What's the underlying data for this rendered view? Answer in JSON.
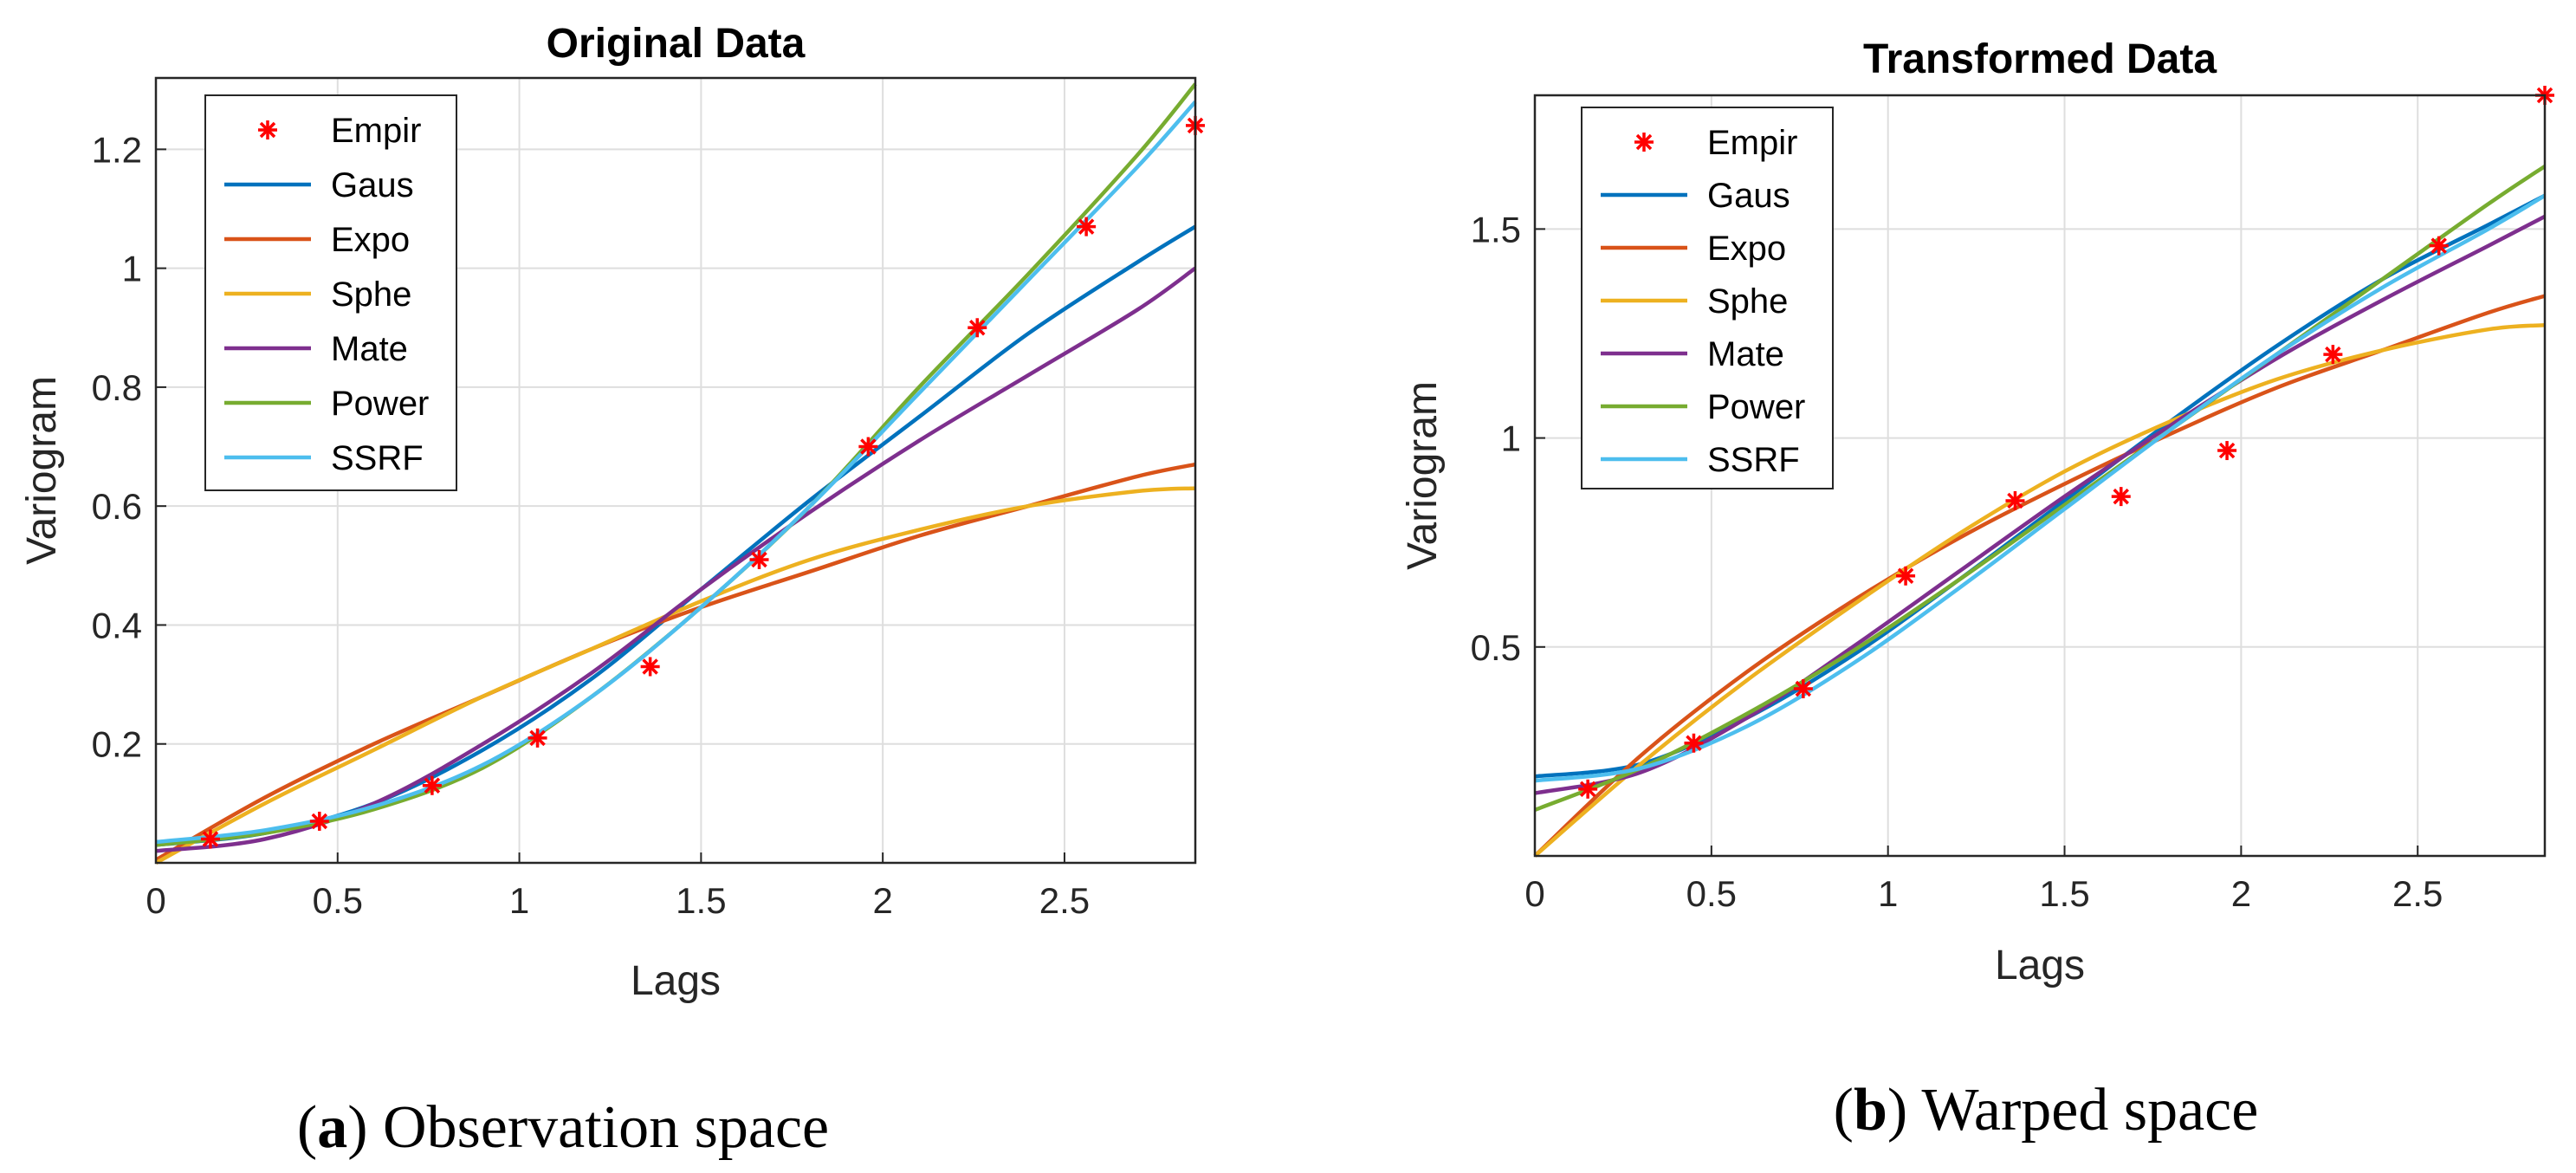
{
  "colors": {
    "Empir": "#ff0000",
    "Gaus": "#0072bd",
    "Expo": "#d95319",
    "Sphe": "#edb120",
    "Mate": "#7e2f8e",
    "Power": "#77ac30",
    "SSRF": "#4dbeee"
  },
  "chart_data": [
    {
      "type": "line",
      "title": "Original Data",
      "xlabel": "Lags",
      "ylabel": "Variogram",
      "xlim": [
        0,
        2.86
      ],
      "ylim": [
        0,
        1.32
      ],
      "xticks": [
        0,
        0.5,
        1,
        1.5,
        2,
        2.5
      ],
      "xtick_labels": [
        "0",
        "0.5",
        "1",
        "1.5",
        "2",
        "2.5"
      ],
      "yticks": [
        0.2,
        0.4,
        0.6,
        0.8,
        1,
        1.2
      ],
      "ytick_labels": [
        "0.2",
        "0.4",
        "0.6",
        "0.8",
        "1",
        "1.2"
      ],
      "grid": true,
      "legend_position": "top-left",
      "legend": [
        "Empir",
        "Gaus",
        "Expo",
        "Sphe",
        "Mate",
        "Power",
        "SSRF"
      ],
      "empirical": {
        "name": "Empir",
        "x": [
          0.15,
          0.45,
          0.76,
          1.05,
          1.36,
          1.66,
          1.96,
          2.26,
          2.56,
          2.86
        ],
        "y": [
          0.04,
          0.07,
          0.13,
          0.21,
          0.33,
          0.51,
          0.7,
          0.9,
          1.07,
          1.24
        ]
      },
      "series": [
        {
          "name": "Gaus",
          "x": [
            0,
            0.3,
            0.6,
            0.9,
            1.2,
            1.5,
            1.8,
            2.1,
            2.4,
            2.7,
            2.86
          ],
          "y": [
            0.03,
            0.05,
            0.1,
            0.19,
            0.31,
            0.46,
            0.61,
            0.75,
            0.89,
            1.01,
            1.07
          ]
        },
        {
          "name": "Expo",
          "x": [
            0,
            0.3,
            0.6,
            0.9,
            1.2,
            1.5,
            1.8,
            2.1,
            2.4,
            2.7,
            2.86
          ],
          "y": [
            0.005,
            0.11,
            0.2,
            0.28,
            0.36,
            0.43,
            0.49,
            0.55,
            0.6,
            0.65,
            0.67
          ]
        },
        {
          "name": "Sphe",
          "x": [
            0,
            0.3,
            0.6,
            0.9,
            1.2,
            1.5,
            1.8,
            2.1,
            2.4,
            2.7,
            2.86
          ],
          "y": [
            0.0,
            0.1,
            0.19,
            0.28,
            0.36,
            0.44,
            0.51,
            0.56,
            0.6,
            0.625,
            0.63
          ]
        },
        {
          "name": "Mate",
          "x": [
            0,
            0.3,
            0.6,
            0.9,
            1.2,
            1.5,
            1.8,
            2.1,
            2.4,
            2.7,
            2.86
          ],
          "y": [
            0.02,
            0.04,
            0.1,
            0.2,
            0.32,
            0.46,
            0.59,
            0.71,
            0.82,
            0.93,
            1.0
          ]
        },
        {
          "name": "Power",
          "x": [
            0,
            0.3,
            0.6,
            0.9,
            1.2,
            1.5,
            1.8,
            2.1,
            2.4,
            2.7,
            2.86
          ],
          "y": [
            0.03,
            0.05,
            0.09,
            0.16,
            0.28,
            0.43,
            0.6,
            0.8,
            0.99,
            1.19,
            1.31
          ]
        },
        {
          "name": "SSRF",
          "x": [
            0,
            0.3,
            0.6,
            0.9,
            1.2,
            1.5,
            1.8,
            2.1,
            2.4,
            2.7,
            2.86
          ],
          "y": [
            0.035,
            0.055,
            0.095,
            0.165,
            0.28,
            0.43,
            0.6,
            0.79,
            0.98,
            1.17,
            1.28
          ]
        }
      ]
    },
    {
      "type": "line",
      "title": "Transformed Data",
      "xlabel": "Lags",
      "ylabel": "Variogram",
      "xlim": [
        0,
        2.86
      ],
      "ylim": [
        0,
        1.82
      ],
      "xticks": [
        0,
        0.5,
        1,
        1.5,
        2,
        2.5
      ],
      "xtick_labels": [
        "0",
        "0.5",
        "1",
        "1.5",
        "2",
        "2.5"
      ],
      "yticks": [
        0.5,
        1,
        1.5
      ],
      "ytick_labels": [
        "0.5",
        "1",
        "1.5"
      ],
      "grid": true,
      "legend_position": "top-left",
      "legend": [
        "Empir",
        "Gaus",
        "Expo",
        "Sphe",
        "Mate",
        "Power",
        "SSRF"
      ],
      "empirical": {
        "name": "Empir",
        "x": [
          0.15,
          0.45,
          0.76,
          1.05,
          1.36,
          1.66,
          1.96,
          2.26,
          2.56,
          2.86
        ],
        "y": [
          0.16,
          0.27,
          0.4,
          0.67,
          0.85,
          0.86,
          0.97,
          1.2,
          1.46,
          1.82
        ]
      },
      "series": [
        {
          "name": "Gaus",
          "x": [
            0,
            0.3,
            0.6,
            0.9,
            1.2,
            1.5,
            1.8,
            2.1,
            2.4,
            2.7,
            2.86
          ],
          "y": [
            0.19,
            0.22,
            0.33,
            0.48,
            0.66,
            0.85,
            1.04,
            1.22,
            1.38,
            1.51,
            1.58
          ]
        },
        {
          "name": "Expo",
          "x": [
            0,
            0.3,
            0.6,
            0.9,
            1.2,
            1.5,
            1.8,
            2.1,
            2.4,
            2.7,
            2.86
          ],
          "y": [
            0.0,
            0.24,
            0.44,
            0.61,
            0.76,
            0.89,
            1.01,
            1.12,
            1.21,
            1.3,
            1.34
          ]
        },
        {
          "name": "Sphe",
          "x": [
            0,
            0.3,
            0.6,
            0.9,
            1.2,
            1.5,
            1.8,
            2.1,
            2.4,
            2.7,
            2.86
          ],
          "y": [
            0.0,
            0.22,
            0.42,
            0.6,
            0.77,
            0.92,
            1.04,
            1.14,
            1.21,
            1.26,
            1.27
          ]
        },
        {
          "name": "Mate",
          "x": [
            0,
            0.3,
            0.6,
            0.9,
            1.2,
            1.5,
            1.8,
            2.1,
            2.4,
            2.7,
            2.86
          ],
          "y": [
            0.15,
            0.2,
            0.33,
            0.5,
            0.68,
            0.86,
            1.03,
            1.19,
            1.33,
            1.46,
            1.53
          ]
        },
        {
          "name": "Power",
          "x": [
            0,
            0.3,
            0.6,
            0.9,
            1.2,
            1.5,
            1.8,
            2.1,
            2.4,
            2.7,
            2.86
          ],
          "y": [
            0.11,
            0.21,
            0.34,
            0.49,
            0.66,
            0.84,
            1.02,
            1.2,
            1.38,
            1.56,
            1.65
          ]
        },
        {
          "name": "SSRF",
          "x": [
            0,
            0.3,
            0.6,
            0.9,
            1.2,
            1.5,
            1.8,
            2.1,
            2.4,
            2.7,
            2.86
          ],
          "y": [
            0.18,
            0.21,
            0.31,
            0.46,
            0.64,
            0.83,
            1.02,
            1.2,
            1.36,
            1.5,
            1.58
          ]
        }
      ]
    }
  ],
  "captions": [
    {
      "letter": "a",
      "text": ") Observation space",
      "open": "("
    },
    {
      "letter": "b",
      "text": ") Warped space",
      "open": "("
    }
  ]
}
